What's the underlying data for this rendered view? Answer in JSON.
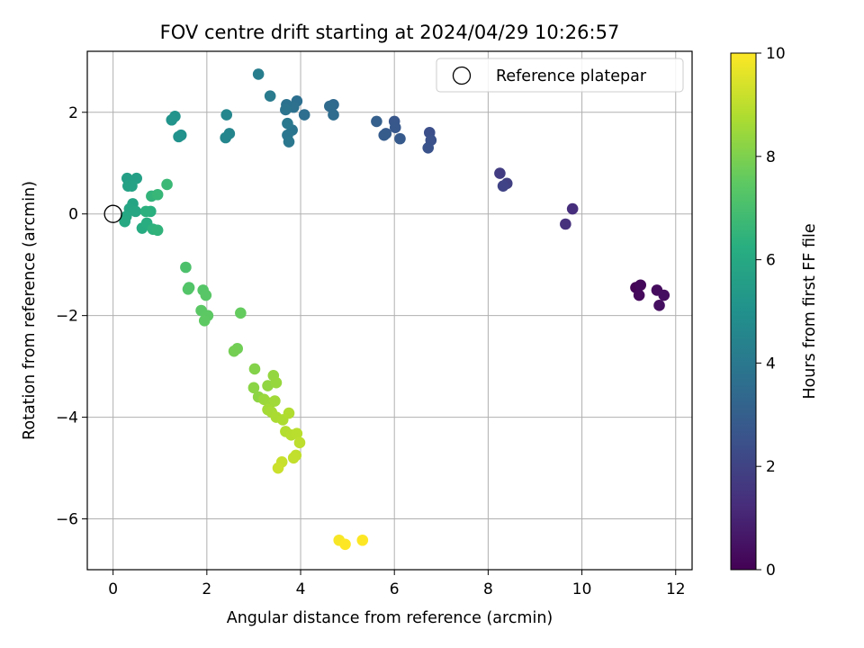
{
  "chart_data": {
    "type": "scatter",
    "title": "FOV centre drift starting at 2024/04/29 10:26:57",
    "xlabel": "Angular distance from reference (arcmin)",
    "ylabel": "Rotation from reference (arcmin)",
    "xlim": [
      -0.55,
      12.35
    ],
    "ylim": [
      -7.0,
      3.2
    ],
    "xticks": [
      0,
      2,
      4,
      6,
      8,
      10,
      12
    ],
    "yticks": [
      -6,
      -4,
      -2,
      0,
      2
    ],
    "grid": true,
    "colormap": "viridis",
    "colorbar": {
      "label": "Hours from first FF file",
      "range": [
        0,
        10
      ],
      "ticks": [
        0,
        2,
        4,
        6,
        8,
        10
      ]
    },
    "legend": {
      "position": "top-right",
      "entries": [
        {
          "label": "Reference platepar",
          "marker": "open-circle",
          "color": "#000000"
        }
      ]
    },
    "reference_point": {
      "x": 0,
      "y": 0
    },
    "points": [
      {
        "x": 11.15,
        "y": -1.45,
        "t": 0.1
      },
      {
        "x": 11.25,
        "y": -1.4,
        "t": 0.2
      },
      {
        "x": 11.22,
        "y": -1.6,
        "t": 0.25
      },
      {
        "x": 11.6,
        "y": -1.5,
        "t": 0.3
      },
      {
        "x": 11.75,
        "y": -1.6,
        "t": 0.35
      },
      {
        "x": 11.65,
        "y": -1.8,
        "t": 0.4
      },
      {
        "x": 9.8,
        "y": 0.1,
        "t": 1.3
      },
      {
        "x": 9.65,
        "y": -0.2,
        "t": 1.4
      },
      {
        "x": 8.25,
        "y": 0.8,
        "t": 1.8
      },
      {
        "x": 8.4,
        "y": 0.6,
        "t": 1.9
      },
      {
        "x": 8.32,
        "y": 0.55,
        "t": 2.0
      },
      {
        "x": 6.75,
        "y": 1.6,
        "t": 2.4
      },
      {
        "x": 6.78,
        "y": 1.45,
        "t": 2.5
      },
      {
        "x": 6.72,
        "y": 1.3,
        "t": 2.55
      },
      {
        "x": 6.0,
        "y": 1.82,
        "t": 2.7
      },
      {
        "x": 6.02,
        "y": 1.7,
        "t": 2.75
      },
      {
        "x": 6.12,
        "y": 1.48,
        "t": 2.8
      },
      {
        "x": 5.82,
        "y": 1.58,
        "t": 2.85
      },
      {
        "x": 5.78,
        "y": 1.55,
        "t": 2.9
      },
      {
        "x": 5.62,
        "y": 1.82,
        "t": 3.0
      },
      {
        "x": 4.7,
        "y": 2.15,
        "t": 3.4
      },
      {
        "x": 4.62,
        "y": 2.12,
        "t": 3.45
      },
      {
        "x": 4.7,
        "y": 1.95,
        "t": 3.5
      },
      {
        "x": 4.08,
        "y": 1.95,
        "t": 3.6
      },
      {
        "x": 3.92,
        "y": 2.22,
        "t": 3.65
      },
      {
        "x": 3.85,
        "y": 2.1,
        "t": 3.7
      },
      {
        "x": 3.7,
        "y": 2.15,
        "t": 3.75
      },
      {
        "x": 3.68,
        "y": 2.05,
        "t": 3.8
      },
      {
        "x": 3.82,
        "y": 1.65,
        "t": 3.85
      },
      {
        "x": 3.72,
        "y": 1.55,
        "t": 3.9
      },
      {
        "x": 3.75,
        "y": 1.42,
        "t": 3.95
      },
      {
        "x": 3.72,
        "y": 1.78,
        "t": 4.0
      },
      {
        "x": 3.35,
        "y": 2.32,
        "t": 4.1
      },
      {
        "x": 3.1,
        "y": 2.75,
        "t": 4.2
      },
      {
        "x": 2.48,
        "y": 1.58,
        "t": 4.5
      },
      {
        "x": 2.4,
        "y": 1.5,
        "t": 4.55
      },
      {
        "x": 2.42,
        "y": 1.95,
        "t": 4.6
      },
      {
        "x": 1.45,
        "y": 1.55,
        "t": 5.0
      },
      {
        "x": 1.4,
        "y": 1.52,
        "t": 5.05
      },
      {
        "x": 1.32,
        "y": 1.92,
        "t": 5.1
      },
      {
        "x": 1.25,
        "y": 1.85,
        "t": 5.15
      },
      {
        "x": 0.3,
        "y": 0.7,
        "t": 5.6
      },
      {
        "x": 0.5,
        "y": 0.7,
        "t": 5.65
      },
      {
        "x": 0.32,
        "y": 0.55,
        "t": 5.7
      },
      {
        "x": 0.4,
        "y": 0.55,
        "t": 5.75
      },
      {
        "x": 0.42,
        "y": 0.2,
        "t": 5.8
      },
      {
        "x": 0.35,
        "y": 0.1,
        "t": 5.85
      },
      {
        "x": 0.48,
        "y": 0.05,
        "t": 5.9
      },
      {
        "x": 0.28,
        "y": -0.05,
        "t": 5.95
      },
      {
        "x": 0.25,
        "y": -0.15,
        "t": 6.0
      },
      {
        "x": 0.62,
        "y": -0.28,
        "t": 6.1
      },
      {
        "x": 0.72,
        "y": -0.18,
        "t": 6.2
      },
      {
        "x": 0.8,
        "y": 0.05,
        "t": 6.3
      },
      {
        "x": 0.7,
        "y": 0.05,
        "t": 6.35
      },
      {
        "x": 0.85,
        "y": -0.3,
        "t": 6.4
      },
      {
        "x": 0.95,
        "y": -0.32,
        "t": 6.45
      },
      {
        "x": 0.82,
        "y": 0.35,
        "t": 6.5
      },
      {
        "x": 0.95,
        "y": 0.38,
        "t": 6.6
      },
      {
        "x": 1.15,
        "y": 0.58,
        "t": 6.7
      },
      {
        "x": 1.55,
        "y": -1.05,
        "t": 7.1
      },
      {
        "x": 1.62,
        "y": -1.45,
        "t": 7.2
      },
      {
        "x": 1.6,
        "y": -1.48,
        "t": 7.25
      },
      {
        "x": 1.92,
        "y": -1.5,
        "t": 7.3
      },
      {
        "x": 1.98,
        "y": -1.6,
        "t": 7.35
      },
      {
        "x": 1.88,
        "y": -1.9,
        "t": 7.4
      },
      {
        "x": 2.02,
        "y": -2.0,
        "t": 7.45
      },
      {
        "x": 1.95,
        "y": -2.1,
        "t": 7.5
      },
      {
        "x": 2.72,
        "y": -1.95,
        "t": 7.6
      },
      {
        "x": 2.65,
        "y": -2.65,
        "t": 7.8
      },
      {
        "x": 2.58,
        "y": -2.7,
        "t": 7.85
      },
      {
        "x": 3.02,
        "y": -3.05,
        "t": 8.1
      },
      {
        "x": 3.0,
        "y": -3.42,
        "t": 8.2
      },
      {
        "x": 3.1,
        "y": -3.6,
        "t": 8.25
      },
      {
        "x": 3.3,
        "y": -3.38,
        "t": 8.3
      },
      {
        "x": 3.42,
        "y": -3.18,
        "t": 8.35
      },
      {
        "x": 3.48,
        "y": -3.32,
        "t": 8.4
      },
      {
        "x": 3.22,
        "y": -3.65,
        "t": 8.45
      },
      {
        "x": 3.35,
        "y": -3.72,
        "t": 8.5
      },
      {
        "x": 3.45,
        "y": -3.68,
        "t": 8.55
      },
      {
        "x": 3.3,
        "y": -3.85,
        "t": 8.6
      },
      {
        "x": 3.38,
        "y": -3.9,
        "t": 8.65
      },
      {
        "x": 3.48,
        "y": -4.0,
        "t": 8.7
      },
      {
        "x": 3.62,
        "y": -4.05,
        "t": 8.75
      },
      {
        "x": 3.75,
        "y": -3.92,
        "t": 8.8
      },
      {
        "x": 3.68,
        "y": -4.28,
        "t": 8.85
      },
      {
        "x": 3.8,
        "y": -4.35,
        "t": 8.9
      },
      {
        "x": 3.92,
        "y": -4.32,
        "t": 8.95
      },
      {
        "x": 3.98,
        "y": -4.5,
        "t": 9.0
      },
      {
        "x": 3.9,
        "y": -4.75,
        "t": 9.05
      },
      {
        "x": 3.85,
        "y": -4.8,
        "t": 9.1
      },
      {
        "x": 3.6,
        "y": -4.88,
        "t": 9.15
      },
      {
        "x": 3.52,
        "y": -5.0,
        "t": 9.2
      },
      {
        "x": 4.82,
        "y": -6.42,
        "t": 9.9
      },
      {
        "x": 4.95,
        "y": -6.5,
        "t": 10.0
      },
      {
        "x": 5.32,
        "y": -6.42,
        "t": 10.05
      }
    ]
  }
}
